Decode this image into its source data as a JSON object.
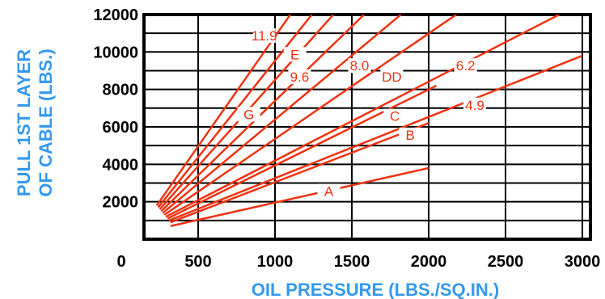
{
  "chart_data": {
    "type": "line",
    "xlabel": "OIL PRESSURE (LBS./SQ.IN.)",
    "ylabel_lines": [
      "PULL 1ST LAYER",
      "OF CABLE (LBS.)"
    ],
    "x_ticks": [
      0,
      500,
      1000,
      1500,
      2000,
      2500,
      3000
    ],
    "y_ticks": [
      2000,
      4000,
      6000,
      8000,
      10000,
      12000
    ],
    "xlim": [
      0,
      3000
    ],
    "ylim": [
      0,
      12000
    ],
    "grid": true,
    "series": [
      {
        "name": "A",
        "x": [
          320,
          2000
        ],
        "y": [
          700,
          3800
        ],
        "label_at": [
          1350,
          2400
        ]
      },
      {
        "name": "B",
        "x": [
          320,
          2000
        ],
        "y": [
          900,
          6200
        ],
        "label_at": [
          1880,
          5400
        ]
      },
      {
        "name": "4.9",
        "x": [
          310,
          3000
        ],
        "y": [
          1000,
          9800
        ],
        "label_at": [
          2300,
          7000
        ]
      },
      {
        "name": "C",
        "x": [
          300,
          2050
        ],
        "y": [
          1100,
          8200
        ],
        "label_at": [
          1780,
          6400
        ]
      },
      {
        "name": "6.2",
        "x": [
          290,
          2850
        ],
        "y": [
          1200,
          12000
        ],
        "label_at": [
          2240,
          9100
        ]
      },
      {
        "name": "DD",
        "x": [
          280,
          2180
        ],
        "y": [
          1300,
          12000
        ],
        "label_at": [
          1760,
          8500
        ]
      },
      {
        "name": "8.0",
        "x": [
          270,
          1820
        ],
        "y": [
          1400,
          12000
        ],
        "label_at": [
          1550,
          9100
        ]
      },
      {
        "name": "9.6",
        "x": [
          260,
          1580
        ],
        "y": [
          1500,
          12000
        ],
        "label_at": [
          1160,
          8500
        ]
      },
      {
        "name": "E",
        "x": [
          250,
          1380
        ],
        "y": [
          1600,
          12000
        ],
        "label_at": [
          1130,
          9700
        ]
      },
      {
        "name": "11.9",
        "x": [
          240,
          1240
        ],
        "y": [
          1700,
          12000
        ],
        "label_at": [
          930,
          10700
        ]
      },
      {
        "name": "G",
        "x": [
          230,
          1100
        ],
        "y": [
          1800,
          12000
        ],
        "label_at": [
          830,
          6500
        ]
      }
    ],
    "colors": {
      "curves": "#ee3311",
      "grid": "#000000",
      "axis_title": "#3399ee"
    }
  }
}
